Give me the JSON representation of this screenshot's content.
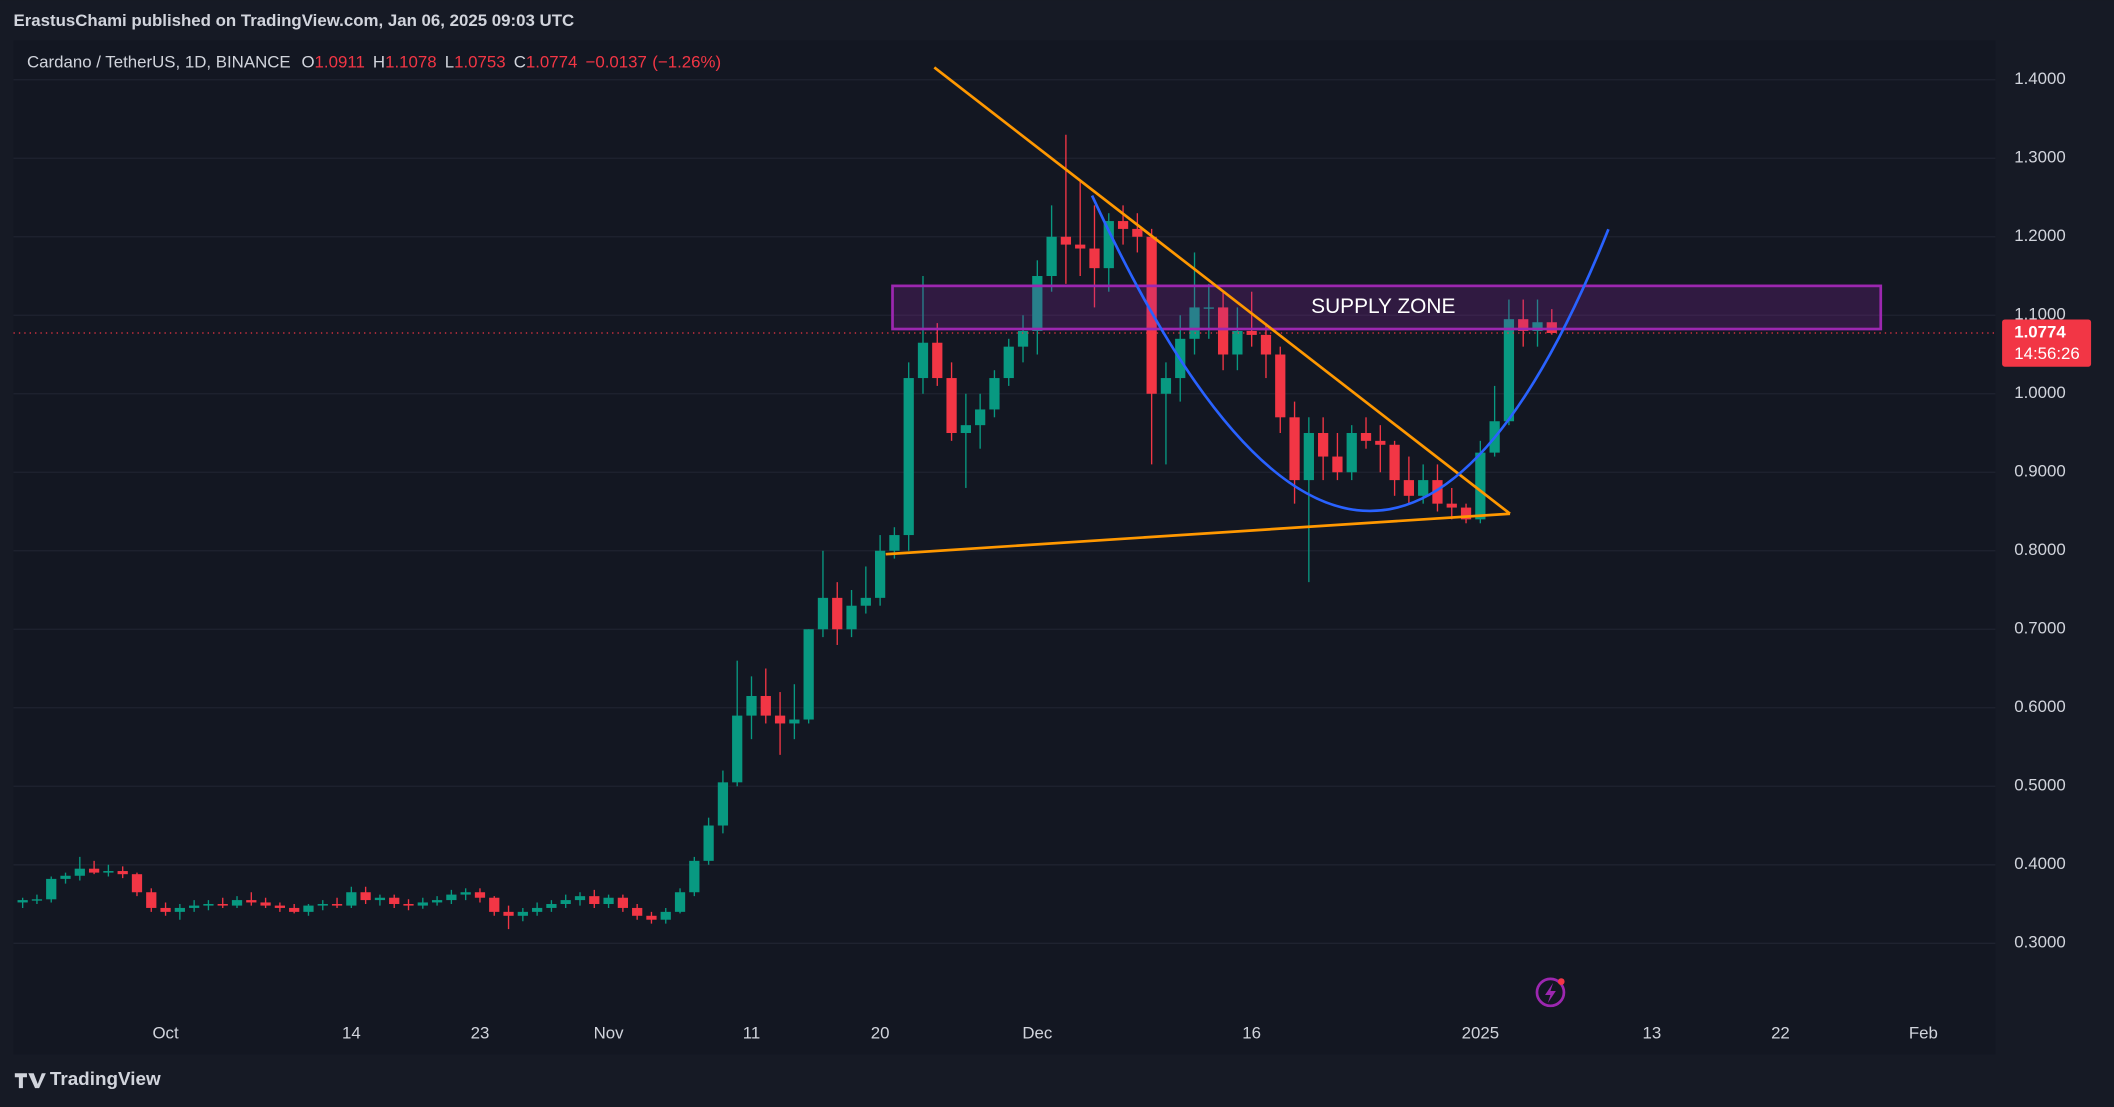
{
  "header": {
    "publisher": "ErastusChami published on TradingView.com, Jan 06, 2025 09:03 UTC"
  },
  "chart_data": {
    "type": "candlestick",
    "symbol": "Cardano / TetherUS, 1D, BINANCE",
    "ohlc_labels": [
      "O",
      "H",
      "L",
      "C"
    ],
    "change": "−0.0137",
    "change_pct": "(−1.26%)",
    "countdown": "14:56:26",
    "annotations": [
      "SUPPLY ZONE"
    ],
    "categories": [
      null,
      null,
      null,
      null,
      null,
      null,
      null,
      null,
      null,
      null,
      null,
      "Oct",
      null,
      null,
      null,
      null,
      null,
      null,
      null,
      null,
      null,
      null,
      null,
      null,
      "14",
      null,
      null,
      null,
      null,
      null,
      null,
      null,
      null,
      "23",
      null,
      null,
      null,
      null,
      null,
      null,
      null,
      null,
      "Nov",
      null,
      null,
      null,
      null,
      null,
      null,
      null,
      null,
      null,
      "11",
      null,
      null,
      null,
      null,
      null,
      null,
      null,
      null,
      "20",
      null,
      null,
      null,
      null,
      null,
      null,
      null,
      null,
      null,
      null,
      "Dec",
      null,
      null,
      null,
      null,
      null,
      null,
      null,
      null,
      null,
      null,
      null,
      null,
      null,
      null,
      "16",
      null,
      null,
      null,
      null,
      null,
      null,
      null,
      null,
      null,
      null,
      null,
      null,
      null,
      null,
      null,
      "2025",
      null,
      null,
      null,
      null,
      null,
      null,
      null,
      null,
      null,
      null,
      null,
      "13",
      null,
      null,
      null,
      null,
      null,
      null,
      null,
      null,
      "22",
      null,
      null,
      null,
      null,
      null,
      null,
      null,
      null,
      null,
      "Feb",
      null,
      null,
      null,
      null
    ],
    "series": [
      {
        "up_color": "#089981",
        "down_color": "#f23645",
        "open": [
          0.355,
          0.352,
          0.355,
          0.356,
          0.382,
          0.386,
          0.395,
          0.39,
          0.392,
          0.388,
          0.365,
          0.345,
          0.34,
          0.345,
          0.348,
          0.35,
          0.348,
          0.355,
          0.352,
          0.348,
          0.345,
          0.34,
          0.348,
          0.35,
          0.348,
          0.365,
          0.355,
          0.358,
          0.35,
          0.348,
          0.352,
          0.355,
          0.362,
          0.365,
          0.358,
          0.34,
          0.335,
          0.34,
          0.345,
          0.35,
          0.355,
          0.36,
          0.35,
          0.358,
          0.345,
          0.335,
          0.33,
          0.34,
          0.365,
          0.405,
          0.45,
          0.505,
          0.59,
          0.615,
          0.59,
          0.58,
          0.585,
          0.7,
          0.74,
          0.7,
          0.73,
          0.74,
          0.8,
          0.82,
          1.02,
          1.065,
          1.02,
          0.95,
          0.96,
          0.98,
          1.02,
          1.06,
          1.08,
          1.15,
          1.2,
          1.19,
          1.185,
          1.16,
          1.22,
          1.21,
          1.2,
          1.0,
          1.02,
          1.07,
          1.11,
          1.11,
          1.05,
          1.08,
          1.075,
          1.05,
          0.97,
          0.89,
          0.95,
          0.92,
          0.9,
          0.95,
          0.94,
          0.935,
          0.89,
          0.87,
          0.89,
          0.86,
          0.855,
          0.84,
          0.925,
          0.965,
          1.095,
          1.08,
          1.0911,
          null,
          null,
          null,
          null,
          null,
          null,
          null,
          null,
          null,
          null,
          null,
          null,
          null,
          null,
          null,
          null,
          null,
          null,
          null,
          null,
          null,
          null,
          null,
          null,
          null,
          null,
          null,
          null,
          null,
          null
        ],
        "high": [
          0.36,
          0.358,
          0.362,
          0.385,
          0.39,
          0.41,
          0.405,
          0.4,
          0.398,
          0.39,
          0.37,
          0.352,
          0.35,
          0.355,
          0.355,
          0.358,
          0.36,
          0.365,
          0.358,
          0.352,
          0.35,
          0.35,
          0.355,
          0.358,
          0.372,
          0.372,
          0.362,
          0.362,
          0.356,
          0.358,
          0.36,
          0.368,
          0.37,
          0.37,
          0.36,
          0.348,
          0.345,
          0.352,
          0.355,
          0.362,
          0.365,
          0.368,
          0.362,
          0.362,
          0.35,
          0.34,
          0.345,
          0.37,
          0.41,
          0.46,
          0.52,
          0.66,
          0.64,
          0.65,
          0.62,
          0.63,
          0.7,
          0.8,
          0.76,
          0.75,
          0.78,
          0.82,
          0.83,
          1.04,
          1.15,
          1.09,
          1.04,
          1.0,
          1.0,
          1.03,
          1.07,
          1.1,
          1.17,
          1.24,
          1.33,
          1.27,
          1.24,
          1.23,
          1.24,
          1.23,
          1.21,
          1.04,
          1.1,
          1.18,
          1.14,
          1.13,
          1.11,
          1.13,
          1.09,
          1.06,
          0.99,
          0.97,
          0.97,
          0.95,
          0.96,
          0.97,
          0.96,
          0.94,
          0.92,
          0.91,
          0.91,
          0.88,
          0.86,
          0.94,
          1.01,
          1.12,
          1.12,
          1.12,
          1.1078,
          null,
          null,
          null,
          null,
          null,
          null,
          null,
          null,
          null,
          null,
          null,
          null,
          null,
          null,
          null,
          null,
          null,
          null,
          null,
          null,
          null,
          null,
          null,
          null,
          null,
          null,
          null,
          null,
          null,
          null
        ],
        "low": [
          0.348,
          0.345,
          0.35,
          0.352,
          0.376,
          0.38,
          0.388,
          0.385,
          0.383,
          0.36,
          0.34,
          0.335,
          0.33,
          0.34,
          0.342,
          0.345,
          0.345,
          0.348,
          0.345,
          0.34,
          0.338,
          0.335,
          0.342,
          0.345,
          0.345,
          0.35,
          0.348,
          0.345,
          0.342,
          0.344,
          0.348,
          0.35,
          0.355,
          0.352,
          0.335,
          0.318,
          0.328,
          0.335,
          0.34,
          0.345,
          0.348,
          0.345,
          0.345,
          0.34,
          0.33,
          0.325,
          0.325,
          0.338,
          0.36,
          0.4,
          0.44,
          0.5,
          0.56,
          0.58,
          0.54,
          0.56,
          0.58,
          0.69,
          0.68,
          0.69,
          0.72,
          0.73,
          0.79,
          0.8,
          1.0,
          1.01,
          0.94,
          0.88,
          0.93,
          0.97,
          1.01,
          1.04,
          1.05,
          1.13,
          1.14,
          1.15,
          1.11,
          1.13,
          1.19,
          1.18,
          0.91,
          0.91,
          0.99,
          1.05,
          1.07,
          1.03,
          1.03,
          1.06,
          1.02,
          0.95,
          0.86,
          0.76,
          0.89,
          0.89,
          0.89,
          0.93,
          0.9,
          0.87,
          0.86,
          0.86,
          0.85,
          0.84,
          0.835,
          0.835,
          0.92,
          0.96,
          1.06,
          1.06,
          1.0753,
          null,
          null,
          null,
          null,
          null,
          null,
          null,
          null,
          null,
          null,
          null,
          null,
          null,
          null,
          null,
          null,
          null,
          null,
          null,
          null,
          null,
          null,
          null,
          null,
          null,
          null,
          null,
          null,
          null,
          null
        ],
        "close": [
          0.352,
          0.355,
          0.356,
          0.382,
          0.386,
          0.395,
          0.39,
          0.392,
          0.388,
          0.365,
          0.345,
          0.34,
          0.345,
          0.348,
          0.35,
          0.348,
          0.355,
          0.352,
          0.348,
          0.345,
          0.34,
          0.348,
          0.35,
          0.348,
          0.365,
          0.355,
          0.358,
          0.35,
          0.348,
          0.352,
          0.355,
          0.362,
          0.365,
          0.358,
          0.34,
          0.335,
          0.34,
          0.345,
          0.35,
          0.355,
          0.36,
          0.35,
          0.358,
          0.345,
          0.335,
          0.33,
          0.34,
          0.365,
          0.405,
          0.45,
          0.505,
          0.59,
          0.615,
          0.59,
          0.58,
          0.585,
          0.7,
          0.74,
          0.7,
          0.73,
          0.74,
          0.8,
          0.82,
          1.02,
          1.065,
          1.02,
          0.95,
          0.96,
          0.98,
          1.02,
          1.06,
          1.08,
          1.15,
          1.2,
          1.19,
          1.185,
          1.16,
          1.22,
          1.21,
          1.2,
          1.0,
          1.02,
          1.07,
          1.11,
          1.11,
          1.05,
          1.08,
          1.075,
          1.05,
          0.97,
          0.89,
          0.95,
          0.92,
          0.9,
          0.95,
          0.94,
          0.935,
          0.89,
          0.87,
          0.89,
          0.86,
          0.855,
          0.84,
          0.925,
          0.965,
          1.095,
          1.08,
          1.0911,
          1.0774,
          null,
          null,
          null,
          null,
          null,
          null,
          null,
          null,
          null,
          null,
          null,
          null,
          null,
          null,
          null,
          null,
          null,
          null,
          null,
          null,
          null,
          null,
          null,
          null,
          null,
          null,
          null,
          null,
          null,
          null
        ]
      }
    ],
    "ylim": [
      0.21,
      1.45
    ],
    "yticks": [
      {
        "value": 0.3,
        "label": "0.3000"
      },
      {
        "value": 0.4,
        "label": "0.4000"
      },
      {
        "value": 0.5,
        "label": "0.5000"
      },
      {
        "value": 0.6,
        "label": "0.6000"
      },
      {
        "value": 0.7,
        "label": "0.7000"
      },
      {
        "value": 0.8,
        "label": "0.8000"
      },
      {
        "value": 0.9,
        "label": "0.9000"
      },
      {
        "value": 1.0,
        "label": "1.0000"
      },
      {
        "value": 1.1,
        "label": "1.1000"
      },
      {
        "value": 1.2,
        "label": "1.2000"
      },
      {
        "value": 1.3,
        "label": "1.3000"
      },
      {
        "value": 1.4,
        "label": "1.4000"
      }
    ],
    "grid": true
  },
  "footer": {
    "brand": "TradingView"
  }
}
